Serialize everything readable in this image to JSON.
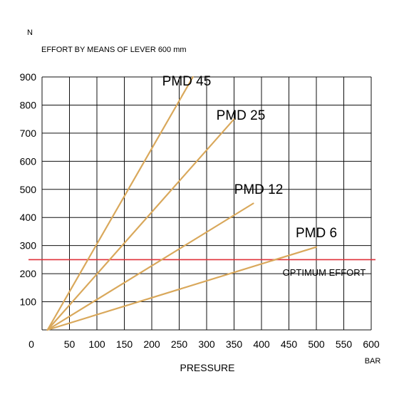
{
  "chart_data": {
    "type": "line",
    "y_unit": "N",
    "y_title": "EFFORT BY MEANS OF LEVER 600 mm",
    "x_unit": "BAR",
    "xlabel": "PRESSURE",
    "xlim": [
      0,
      600
    ],
    "ylim": [
      0,
      900
    ],
    "x_ticks": [
      "0",
      "50",
      "100",
      "150",
      "200",
      "250",
      "300",
      "350",
      "400",
      "450",
      "500",
      "550",
      "600"
    ],
    "y_ticks": [
      "900",
      "800",
      "700",
      "600",
      "500",
      "400",
      "300",
      "200",
      "100"
    ],
    "grid": true,
    "series": [
      {
        "name": "PMD 45",
        "color": "#d9a85b",
        "points": [
          [
            10,
            0
          ],
          [
            275,
            900
          ]
        ]
      },
      {
        "name": "PMD 25",
        "color": "#d9a85b",
        "points": [
          [
            10,
            0
          ],
          [
            350,
            750
          ]
        ]
      },
      {
        "name": "PMD 12",
        "color": "#d9a85b",
        "points": [
          [
            10,
            0
          ],
          [
            385,
            450
          ]
        ]
      },
      {
        "name": "PMD 6",
        "color": "#d9a85b",
        "points": [
          [
            10,
            0
          ],
          [
            500,
            295
          ]
        ]
      }
    ],
    "reference_line": {
      "label": "OPTIMUM EFFORT",
      "y": 250,
      "color": "#e0303a"
    }
  }
}
